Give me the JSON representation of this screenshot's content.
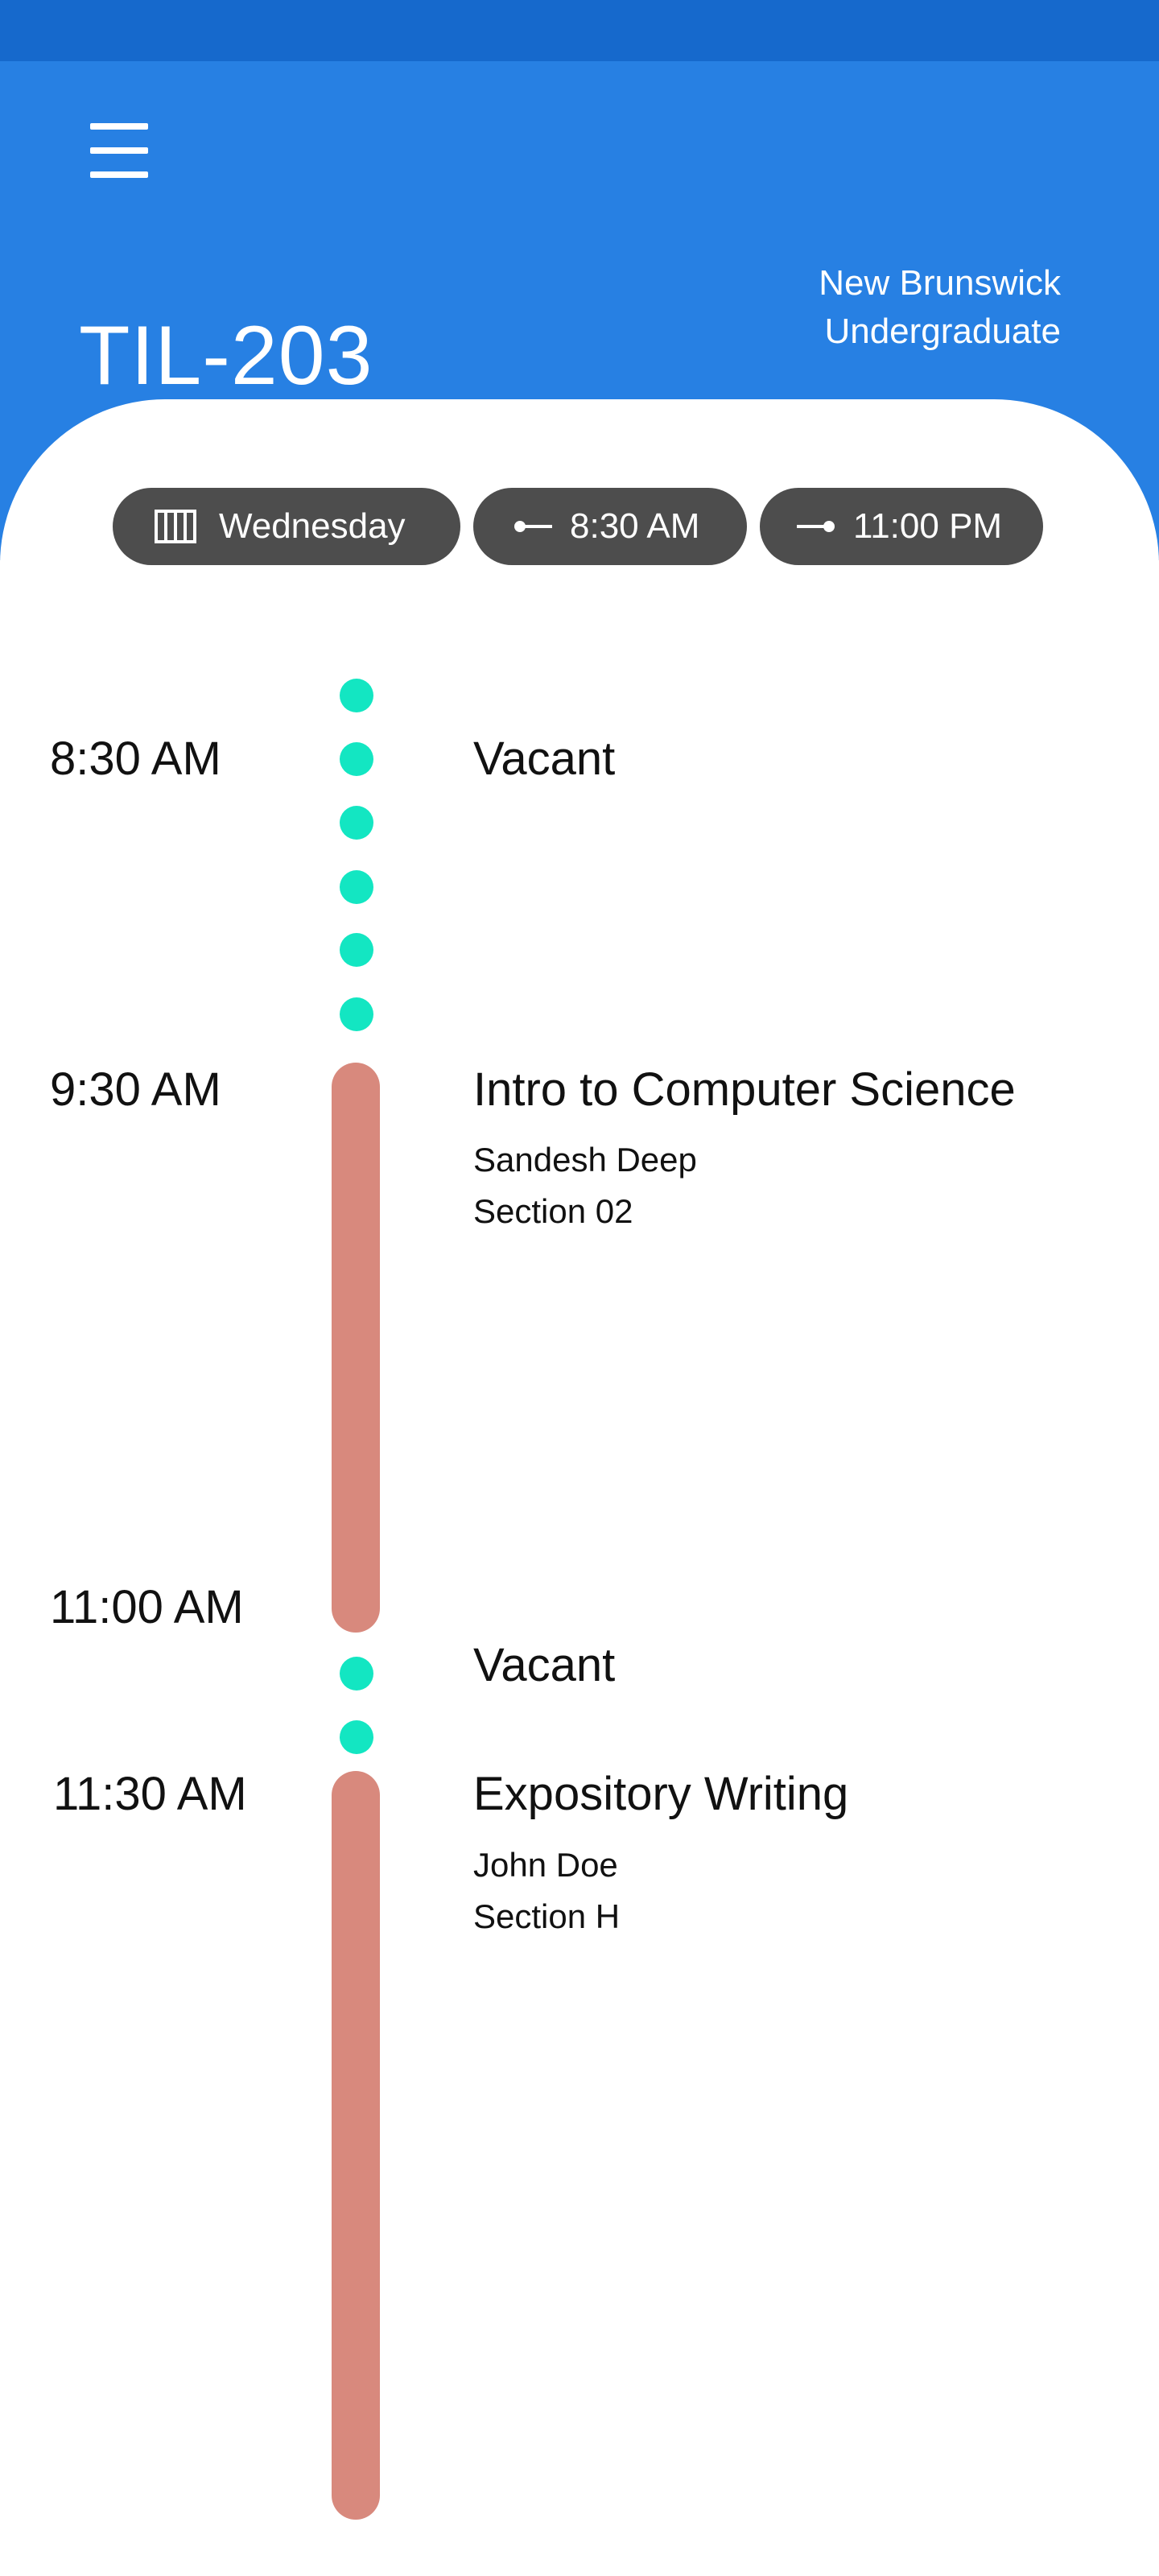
{
  "header": {
    "room": "TIL-203",
    "campus_line1": "New Brunswick",
    "campus_line2": "Undergraduate",
    "menu_icon": "hamburger-menu-icon"
  },
  "filters": {
    "day": {
      "icon": "calendar-icon",
      "label": "Wednesday"
    },
    "start": {
      "icon": "start-time-icon",
      "label": "8:30 AM"
    },
    "end": {
      "icon": "end-time-icon",
      "label": "11:00 PM"
    }
  },
  "timeline": {
    "labels": [
      "8:30 AM",
      "9:30 AM",
      "11:00 AM",
      "11:30 AM"
    ],
    "slots": [
      {
        "status": "vacant",
        "title": "Vacant"
      },
      {
        "status": "booked",
        "title": "Intro to Computer Science",
        "instructor": "Sandesh Deep",
        "section": "Section 02"
      },
      {
        "status": "vacant",
        "title": "Vacant"
      },
      {
        "status": "booked",
        "title": "Expository Writing",
        "instructor": "John Doe",
        "section": "Section H"
      }
    ]
  },
  "colors": {
    "header_blue": "#2780e3",
    "status_bar_blue": "#1669cc",
    "chip_gray": "#4d4d4d",
    "vacant_teal": "#13e6c2",
    "booked_salmon": "#d8897d"
  }
}
